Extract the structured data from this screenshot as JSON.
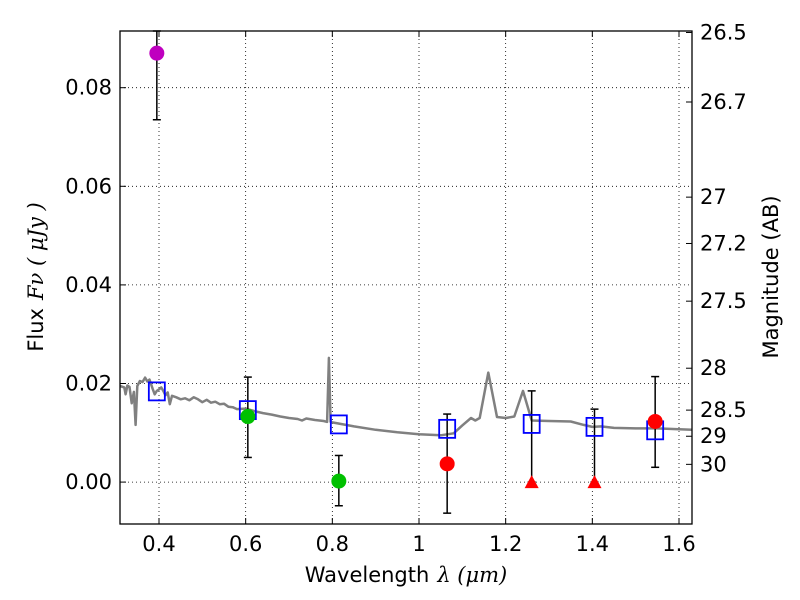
{
  "chart_data": {
    "type": "scatter",
    "xlabel": "Wavelength",
    "xlabel_math": "λ (μm)",
    "ylabel": "Flux",
    "ylabel_math": "Fν ( μJy )",
    "y2label": "Magnitude (AB)",
    "xlim": [
      0.31,
      1.63
    ],
    "ylim": [
      -0.0085,
      0.0915
    ],
    "grid": true,
    "x_ticks": [
      0.4,
      0.6,
      0.8,
      1.0,
      1.2,
      1.4,
      1.6
    ],
    "x_tick_labels": [
      "0.4",
      "0.6",
      "0.8",
      "1",
      "1.2",
      "1.4",
      "1.6"
    ],
    "y_ticks": [
      0.0,
      0.02,
      0.04,
      0.06,
      0.08
    ],
    "y_tick_labels": [
      "0.00",
      "0.02",
      "0.04",
      "0.06",
      "0.08"
    ],
    "mag_ticks": [
      {
        "label": "26.5",
        "flux": 0.0912
      },
      {
        "label": "26.7",
        "flux": 0.0771
      },
      {
        "label": "27",
        "flux": 0.0578
      },
      {
        "label": "27.2",
        "flux": 0.0484
      },
      {
        "label": "27.5",
        "flux": 0.0367
      },
      {
        "label": "28",
        "flux": 0.0231
      },
      {
        "label": "28.5",
        "flux": 0.0146
      },
      {
        "label": "29",
        "flux": 0.0093
      },
      {
        "label": "30",
        "flux": 0.0036
      }
    ],
    "series": [
      {
        "kind": "line",
        "color": "#808080",
        "points": [
          [
            0.31,
            0.0195
          ],
          [
            0.32,
            0.0192
          ],
          [
            0.323,
            0.0178
          ],
          [
            0.327,
            0.0196
          ],
          [
            0.332,
            0.0193
          ],
          [
            0.337,
            0.016
          ],
          [
            0.342,
            0.0183
          ],
          [
            0.346,
            0.0116
          ],
          [
            0.35,
            0.0195
          ],
          [
            0.356,
            0.0205
          ],
          [
            0.362,
            0.0203
          ],
          [
            0.368,
            0.0212
          ],
          [
            0.373,
            0.0204
          ],
          [
            0.378,
            0.0208
          ],
          [
            0.385,
            0.019
          ],
          [
            0.39,
            0.0178
          ],
          [
            0.395,
            0.0185
          ],
          [
            0.4,
            0.0188
          ],
          [
            0.405,
            0.0192
          ],
          [
            0.41,
            0.0185
          ],
          [
            0.415,
            0.0176
          ],
          [
            0.42,
            0.0182
          ],
          [
            0.425,
            0.0158
          ],
          [
            0.43,
            0.0175
          ],
          [
            0.44,
            0.0172
          ],
          [
            0.45,
            0.0168
          ],
          [
            0.46,
            0.017
          ],
          [
            0.47,
            0.0166
          ],
          [
            0.48,
            0.0172
          ],
          [
            0.49,
            0.0168
          ],
          [
            0.5,
            0.0162
          ],
          [
            0.51,
            0.0167
          ],
          [
            0.52,
            0.0161
          ],
          [
            0.53,
            0.0163
          ],
          [
            0.54,
            0.0158
          ],
          [
            0.55,
            0.0159
          ],
          [
            0.56,
            0.0153
          ],
          [
            0.57,
            0.0152
          ],
          [
            0.58,
            0.0148
          ],
          [
            0.6,
            0.0149
          ],
          [
            0.62,
            0.0144
          ],
          [
            0.64,
            0.014
          ],
          [
            0.66,
            0.0137
          ],
          [
            0.68,
            0.0133
          ],
          [
            0.7,
            0.013
          ],
          [
            0.72,
            0.0128
          ],
          [
            0.73,
            0.0125
          ],
          [
            0.74,
            0.0129
          ],
          [
            0.76,
            0.0126
          ],
          [
            0.78,
            0.0124
          ],
          [
            0.788,
            0.0122
          ],
          [
            0.792,
            0.0252
          ],
          [
            0.796,
            0.0122
          ],
          [
            0.8,
            0.0121
          ],
          [
            0.85,
            0.0113
          ],
          [
            0.9,
            0.0106
          ],
          [
            0.95,
            0.0101
          ],
          [
            1.0,
            0.0097
          ],
          [
            1.05,
            0.0095
          ],
          [
            1.08,
            0.0099
          ],
          [
            1.1,
            0.0115
          ],
          [
            1.12,
            0.013
          ],
          [
            1.13,
            0.0125
          ],
          [
            1.14,
            0.013
          ],
          [
            1.16,
            0.0222
          ],
          [
            1.18,
            0.0132
          ],
          [
            1.2,
            0.013
          ],
          [
            1.22,
            0.0133
          ],
          [
            1.24,
            0.0185
          ],
          [
            1.26,
            0.0125
          ],
          [
            1.3,
            0.0124
          ],
          [
            1.35,
            0.0123
          ],
          [
            1.38,
            0.0116
          ],
          [
            1.4,
            0.0112
          ],
          [
            1.42,
            0.0113
          ],
          [
            1.45,
            0.011
          ],
          [
            1.5,
            0.0109
          ],
          [
            1.55,
            0.0109
          ],
          [
            1.6,
            0.0107
          ],
          [
            1.63,
            0.0106
          ]
        ]
      },
      {
        "kind": "open-square",
        "color": "#0000ff",
        "points": [
          [
            0.395,
            0.0184
          ],
          [
            0.605,
            0.0146
          ],
          [
            0.815,
            0.0117
          ],
          [
            1.065,
            0.0108
          ],
          [
            1.26,
            0.0118
          ],
          [
            1.405,
            0.0112
          ],
          [
            1.545,
            0.0105
          ]
        ]
      },
      {
        "kind": "circle",
        "color": "#bf00bf",
        "points": [
          [
            0.395,
            0.087
          ]
        ],
        "yerr": [
          [
            0.0735,
            0.0915
          ]
        ]
      },
      {
        "kind": "circle",
        "color": "#00c000",
        "points": [
          [
            0.605,
            0.0133
          ],
          [
            0.815,
            0.0002
          ]
        ],
        "yerr": [
          [
            0.005,
            0.0213
          ],
          [
            -0.0048,
            0.0054
          ]
        ]
      },
      {
        "kind": "circle",
        "color": "#ff0000",
        "points": [
          [
            1.065,
            0.0037
          ],
          [
            1.545,
            0.0123
          ]
        ],
        "yerr": [
          [
            -0.0063,
            0.0138
          ],
          [
            0.003,
            0.0214
          ]
        ]
      },
      {
        "kind": "triangle",
        "color": "#ff0000",
        "points": [
          [
            1.26,
            0.0
          ],
          [
            1.405,
            0.0
          ]
        ],
        "yerr": [
          [
            0.0,
            0.0185
          ],
          [
            0.0,
            0.0148
          ]
        ]
      }
    ]
  }
}
